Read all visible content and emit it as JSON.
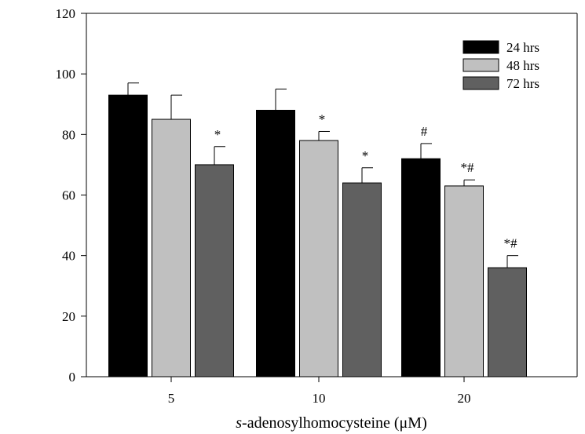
{
  "chart_data": {
    "type": "bar",
    "title": "",
    "xlabel": "s-adenosylhomocysteine (μM)",
    "xlabel_italic_part": "s",
    "xlabel_rest": "-adenosylhomocysteine (",
    "xlabel_unit_symbol": "μ",
    "xlabel_unit_tail": "M)",
    "ylabel": "",
    "ylim": [
      0,
      120
    ],
    "yticks": [
      0,
      20,
      40,
      60,
      80,
      100,
      120
    ],
    "categories": [
      "5",
      "10",
      "20"
    ],
    "series": [
      {
        "name": "24 hrs",
        "color": "#000000",
        "values": [
          93,
          88,
          72
        ],
        "errors": [
          4,
          7,
          5
        ],
        "annotations": [
          "",
          "",
          "#"
        ]
      },
      {
        "name": "48 hrs",
        "color": "#c0c0c0",
        "values": [
          85,
          78,
          63
        ],
        "errors": [
          8,
          3,
          2
        ],
        "annotations": [
          "",
          "*",
          "*#"
        ]
      },
      {
        "name": "72 hrs",
        "color": "#606060",
        "values": [
          70,
          64,
          36
        ],
        "errors": [
          6,
          5,
          4
        ],
        "annotations": [
          "*",
          "*",
          "*#"
        ]
      }
    ],
    "legend_position": "top-right",
    "grid": false
  }
}
